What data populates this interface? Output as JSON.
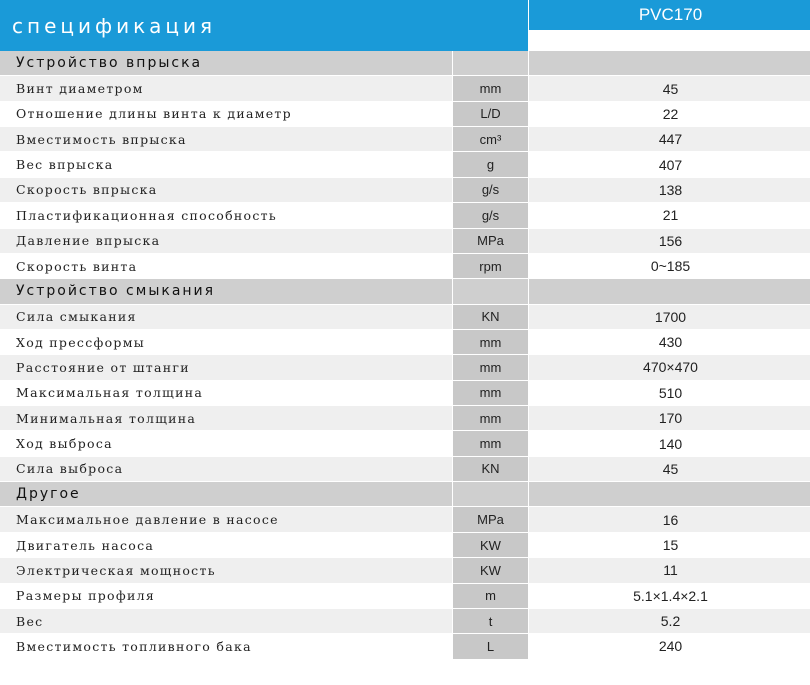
{
  "header": {
    "title": "спецификация",
    "model": "PVC170"
  },
  "sections": [
    {
      "title": "Устройство впрыска",
      "rows": [
        {
          "label": "Винт диаметром",
          "unit": "mm",
          "value": "45"
        },
        {
          "label": "Отношение длины винта к диаметр",
          "unit": "L/D",
          "value": "22"
        },
        {
          "label": "Вместимость впрыска",
          "unit": "cm³",
          "value": "447"
        },
        {
          "label": "Вес впрыска",
          "unit": "g",
          "value": "407"
        },
        {
          "label": "Скорость впрыска",
          "unit": "g/s",
          "value": "138"
        },
        {
          "label": "Пластификационная способность",
          "unit": "g/s",
          "value": "21"
        },
        {
          "label": "Давление впрыска",
          "unit": "MPa",
          "value": "156"
        },
        {
          "label": "Скорость винта",
          "unit": "rpm",
          "value": "0~185"
        }
      ]
    },
    {
      "title": "Устройство смыкания",
      "rows": [
        {
          "label": "Сила смыкания",
          "unit": "KN",
          "value": "1700"
        },
        {
          "label": "Ход прессформы",
          "unit": "mm",
          "value": "430"
        },
        {
          "label": "Расстояние от штанги",
          "unit": "mm",
          "value": "470×470"
        },
        {
          "label": "Максимальная толщина",
          "unit": "mm",
          "value": "510"
        },
        {
          "label": "Минимальная толщина",
          "unit": "mm",
          "value": "170"
        },
        {
          "label": "Ход выброса",
          "unit": "mm",
          "value": "140"
        },
        {
          "label": "Сила выброса",
          "unit": "KN",
          "value": "45"
        }
      ]
    },
    {
      "title": "Другое",
      "rows": [
        {
          "label": "Максимальное давление в насосе",
          "unit": "MPa",
          "value": "16"
        },
        {
          "label": "Двигатель насоса",
          "unit": "KW",
          "value": "15"
        },
        {
          "label": "Электрическая мощность",
          "unit": "KW",
          "value": "11"
        },
        {
          "label": "Размеры профиля",
          "unit": "m",
          "value": "5.1×1.4×2.1"
        },
        {
          "label": "Вес",
          "unit": "t",
          "value": "5.2"
        },
        {
          "label": "Вместимость топливного бака",
          "unit": "L",
          "value": "240"
        }
      ]
    }
  ],
  "colors": {
    "header_blue": "#1a9ad8",
    "section_gray": "#cfcfcf",
    "unit_gray": "#c8c8c8",
    "row_alt": "#efefef"
  }
}
